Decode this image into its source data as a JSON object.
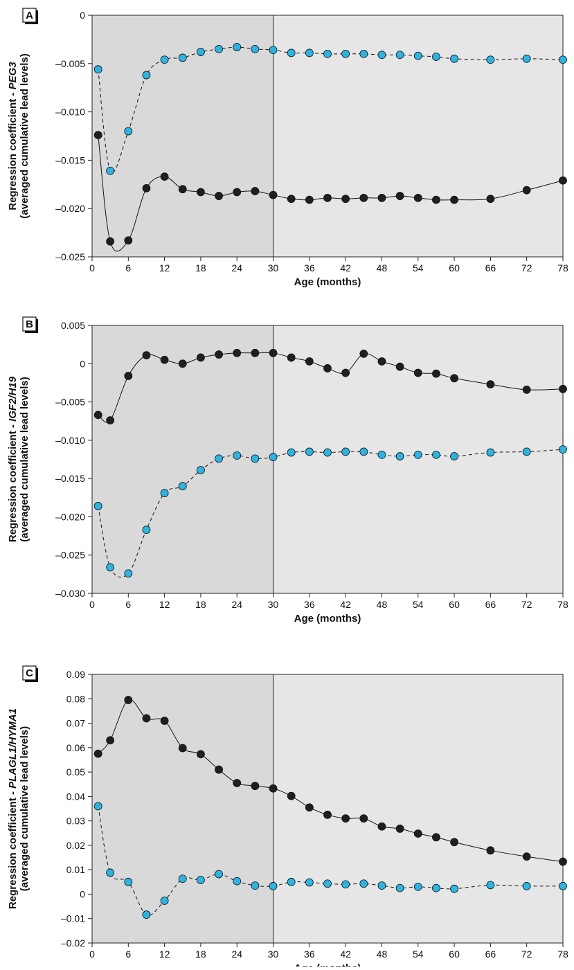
{
  "colors": {
    "series_black": "#1f1f1f",
    "series_blue": "#2fb3e0",
    "shade_early": "#d9d9d9",
    "shade_late": "#e6e6e6"
  },
  "chart_data": [
    {
      "type": "line",
      "panel_label": "A",
      "xlabel": "Age (months)",
      "ylabel_prefix": "Regression coefficient - ",
      "ylabel_gene": "PEG3",
      "ylabel_line2": "(averaged cumulative lead levels)",
      "xlim": [
        0,
        78
      ],
      "ylim": [
        -0.025,
        0
      ],
      "xticks": [
        0,
        6,
        12,
        18,
        24,
        30,
        36,
        42,
        48,
        54,
        60,
        66,
        72,
        78
      ],
      "xtick_labels": [
        "0",
        "6",
        "12",
        "18",
        "24",
        "30",
        "36",
        "42",
        "48",
        "54",
        "60",
        "66",
        "72",
        "78"
      ],
      "yticks": [
        0,
        -0.005,
        -0.01,
        -0.015,
        -0.02,
        -0.025
      ],
      "ytick_labels": [
        "0",
        "–0.005",
        "–0.010",
        "–0.015",
        "–0.020",
        "–0.025"
      ],
      "shade_boundary_x": 30,
      "series": [
        {
          "style": "solid",
          "color": "black",
          "x": [
            1,
            3,
            6,
            9,
            12,
            15,
            18,
            21,
            24,
            27,
            30,
            33,
            36,
            39,
            42,
            45,
            48,
            51,
            54,
            57,
            60,
            66,
            72,
            78
          ],
          "y": [
            -0.0124,
            -0.0234,
            -0.0233,
            -0.0179,
            -0.0167,
            -0.018,
            -0.0183,
            -0.0187,
            -0.0183,
            -0.0182,
            -0.0186,
            -0.019,
            -0.0191,
            -0.0189,
            -0.019,
            -0.0189,
            -0.0189,
            -0.0187,
            -0.0189,
            -0.0191,
            -0.0191,
            -0.019,
            -0.0181,
            -0.0171
          ]
        },
        {
          "style": "dashed",
          "color": "blue",
          "x": [
            1,
            3,
            6,
            9,
            12,
            15,
            18,
            21,
            24,
            27,
            30,
            33,
            36,
            39,
            42,
            45,
            48,
            51,
            54,
            57,
            60,
            66,
            72,
            78
          ],
          "y": [
            -0.0056,
            -0.0161,
            -0.012,
            -0.0062,
            -0.0046,
            -0.0044,
            -0.0038,
            -0.0035,
            -0.0033,
            -0.0035,
            -0.0036,
            -0.0039,
            -0.0039,
            -0.004,
            -0.004,
            -0.004,
            -0.0041,
            -0.0041,
            -0.0042,
            -0.0043,
            -0.0045,
            -0.0046,
            -0.0045,
            -0.0046
          ]
        }
      ]
    },
    {
      "type": "line",
      "panel_label": "B",
      "xlabel": "Age (months)",
      "ylabel_prefix": "Regression coefficient - ",
      "ylabel_gene": "IGF2/H19",
      "ylabel_line2": "(averaged cumulative lead levels)",
      "xlim": [
        0,
        78
      ],
      "ylim": [
        -0.03,
        0.005
      ],
      "xticks": [
        0,
        6,
        12,
        18,
        24,
        30,
        36,
        42,
        48,
        54,
        60,
        66,
        72,
        78
      ],
      "xtick_labels": [
        "0",
        "6",
        "12",
        "18",
        "24",
        "30",
        "36",
        "42",
        "48",
        "54",
        "60",
        "66",
        "72",
        "78"
      ],
      "yticks": [
        0.005,
        0,
        -0.005,
        -0.01,
        -0.015,
        -0.02,
        -0.025,
        -0.03
      ],
      "ytick_labels": [
        "0.005",
        "0",
        "–0.005",
        "–0.010",
        "–0.015",
        "–0.020",
        "–0.025",
        "–0.030"
      ],
      "shade_boundary_x": 30,
      "series": [
        {
          "style": "solid",
          "color": "black",
          "x": [
            1,
            3,
            6,
            9,
            12,
            15,
            18,
            21,
            24,
            27,
            30,
            33,
            36,
            39,
            42,
            45,
            48,
            51,
            54,
            57,
            60,
            66,
            72,
            78
          ],
          "y": [
            -0.0067,
            -0.0074,
            -0.0016,
            0.0011,
            0.0005,
            0.0,
            0.0008,
            0.0012,
            0.0014,
            0.0014,
            0.0014,
            0.0008,
            0.0003,
            -0.0006,
            -0.0012,
            0.0013,
            0.0003,
            -0.0004,
            -0.0012,
            -0.0013,
            -0.0019,
            -0.0027,
            -0.0034,
            -0.0033
          ]
        },
        {
          "style": "dashed",
          "color": "blue",
          "x": [
            1,
            3,
            6,
            9,
            12,
            15,
            18,
            21,
            24,
            27,
            30,
            33,
            36,
            39,
            42,
            45,
            48,
            51,
            54,
            57,
            60,
            66,
            72,
            78
          ],
          "y": [
            -0.0186,
            -0.0266,
            -0.0274,
            -0.0217,
            -0.0169,
            -0.016,
            -0.0139,
            -0.0124,
            -0.012,
            -0.0124,
            -0.0122,
            -0.0116,
            -0.0115,
            -0.0116,
            -0.0115,
            -0.0115,
            -0.0119,
            -0.0121,
            -0.0119,
            -0.0119,
            -0.0121,
            -0.0116,
            -0.0115,
            -0.0112
          ]
        }
      ]
    },
    {
      "type": "line",
      "panel_label": "C",
      "xlabel": "Age (months)",
      "ylabel_prefix": "Regression coefficient - ",
      "ylabel_gene": "PLAGL1/HYMA1",
      "ylabel_line2": "(averaged cumulative lead levels)",
      "xlim": [
        0,
        78
      ],
      "ylim": [
        -0.02,
        0.09
      ],
      "xticks": [
        0,
        6,
        12,
        18,
        24,
        30,
        36,
        42,
        48,
        54,
        60,
        66,
        72,
        78
      ],
      "xtick_labels": [
        "0",
        "6",
        "12",
        "18",
        "24",
        "30",
        "36",
        "42",
        "48",
        "54",
        "60",
        "66",
        "72",
        "78"
      ],
      "yticks": [
        0.09,
        0.08,
        0.07,
        0.06,
        0.05,
        0.04,
        0.03,
        0.02,
        0.01,
        0,
        -0.01,
        -0.02
      ],
      "ytick_labels": [
        "0.09",
        "0.08",
        "0.07",
        "0.06",
        "0.05",
        "0.04",
        "0.03",
        "0.02",
        "0.01",
        "0",
        "–0.01",
        "–0.02"
      ],
      "shade_boundary_x": 30,
      "series": [
        {
          "style": "solid",
          "color": "black",
          "x": [
            1,
            3,
            6,
            9,
            12,
            15,
            18,
            21,
            24,
            27,
            30,
            33,
            36,
            39,
            42,
            45,
            48,
            51,
            54,
            57,
            60,
            66,
            72,
            78
          ],
          "y": [
            0.0575,
            0.063,
            0.0795,
            0.072,
            0.071,
            0.0598,
            0.0573,
            0.051,
            0.0455,
            0.0443,
            0.0433,
            0.0402,
            0.0355,
            0.0325,
            0.031,
            0.031,
            0.0277,
            0.0268,
            0.0248,
            0.0233,
            0.0213,
            0.0179,
            0.0154,
            0.0133
          ]
        },
        {
          "style": "dashed",
          "color": "blue",
          "x": [
            1,
            3,
            6,
            9,
            12,
            15,
            18,
            21,
            24,
            27,
            30,
            33,
            36,
            39,
            42,
            45,
            48,
            51,
            54,
            57,
            60,
            66,
            72,
            78
          ],
          "y": [
            0.036,
            0.0088,
            0.005,
            -0.0084,
            -0.0027,
            0.0063,
            0.0058,
            0.0082,
            0.0053,
            0.0035,
            0.0033,
            0.005,
            0.0048,
            0.0043,
            0.004,
            0.0043,
            0.0035,
            0.0025,
            0.003,
            0.0025,
            0.0022,
            0.0037,
            0.0033,
            0.0033
          ]
        }
      ]
    }
  ]
}
